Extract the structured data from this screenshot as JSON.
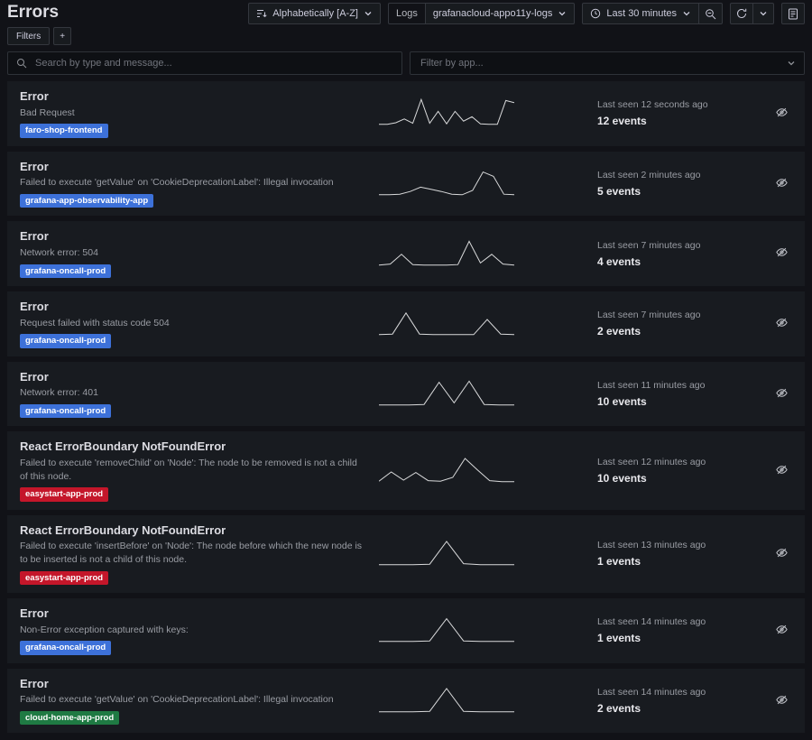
{
  "page": {
    "title": "Errors"
  },
  "toolbar": {
    "sort_label": "Alphabetically [A-Z]",
    "logs_label": "Logs",
    "logs_value": "grafanacloud-appo11y-logs",
    "time_range_label": "Last 30 minutes"
  },
  "filters_bar": {
    "filters_label": "Filters",
    "add_label": "+"
  },
  "search": {
    "placeholder": "Search by type and message..."
  },
  "app_filter": {
    "placeholder": "Filter by app..."
  },
  "colors": {
    "badge_blue": "#3d71d9",
    "badge_red": "#c4162a",
    "badge_green": "#1f7a43",
    "spark_line": "#d8d9da"
  },
  "errors": [
    {
      "title": "Error",
      "message": "Bad Request",
      "app": "faro-shop-frontend",
      "badge": "blue",
      "last_seen": "Last seen 12 seconds ago",
      "events": "12 events",
      "spark": [
        0.2,
        0.2,
        0.5,
        1.2,
        0.4,
        4.8,
        0.4,
        2.6,
        0.3,
        2.6,
        0.8,
        1.6,
        0.3,
        0.2,
        0.2,
        4.6,
        4.2
      ]
    },
    {
      "title": "Error",
      "message": "Failed to execute 'getValue' on 'CookieDeprecationLabel': Illegal invocation",
      "app": "grafana-app-observability-app",
      "badge": "blue",
      "last_seen": "Last seen 2 minutes ago",
      "events": "5 events",
      "spark": [
        0.2,
        0.2,
        0.3,
        0.8,
        1.6,
        1.2,
        0.8,
        0.3,
        0.2,
        1.0,
        4.4,
        3.6,
        0.3,
        0.2
      ]
    },
    {
      "title": "Error",
      "message": "Network error: 504",
      "app": "grafana-oncall-prod",
      "badge": "blue",
      "last_seen": "Last seen 7 minutes ago",
      "events": "4 events",
      "spark": [
        0.2,
        0.4,
        2.2,
        0.3,
        0.2,
        0.2,
        0.2,
        0.3,
        4.6,
        0.6,
        2.2,
        0.4,
        0.2
      ]
    },
    {
      "title": "Error",
      "message": "Request failed with status code 504",
      "app": "grafana-oncall-prod",
      "badge": "blue",
      "last_seen": "Last seen 7 minutes ago",
      "events": "2 events",
      "spark": [
        0.2,
        0.3,
        4.2,
        0.3,
        0.2,
        0.2,
        0.2,
        0.2,
        3.0,
        0.3,
        0.2
      ]
    },
    {
      "title": "Error",
      "message": "Network error: 401",
      "app": "grafana-oncall-prod",
      "badge": "blue",
      "last_seen": "Last seen 11 minutes ago",
      "events": "10 events",
      "spark": [
        0.2,
        0.2,
        0.2,
        0.3,
        4.4,
        0.6,
        4.6,
        0.3,
        0.2,
        0.2
      ]
    },
    {
      "title": "React ErrorBoundary NotFoundError",
      "message": "Failed to execute 'removeChild' on 'Node': The node to be removed is not a child of this node.",
      "app": "easystart-app-prod",
      "badge": "red",
      "last_seen": "Last seen 12 minutes ago",
      "events": "10 events",
      "spark": [
        0.3,
        2.0,
        0.5,
        1.9,
        0.4,
        0.3,
        1.0,
        4.5,
        2.4,
        0.4,
        0.2,
        0.2
      ]
    },
    {
      "title": "React ErrorBoundary NotFoundError",
      "message": "Failed to execute 'insertBefore' on 'Node': The node before which the new node is to be inserted is not a child of this node.",
      "app": "easystart-app-prod",
      "badge": "red",
      "last_seen": "Last seen 13 minutes ago",
      "events": "1 events",
      "spark": [
        0.2,
        0.2,
        0.2,
        0.3,
        4.5,
        0.4,
        0.2,
        0.2,
        0.2
      ]
    },
    {
      "title": "Error",
      "message": "Non-Error exception captured with keys:",
      "app": "grafana-oncall-prod",
      "badge": "blue",
      "last_seen": "Last seen 14 minutes ago",
      "events": "1 events",
      "spark": [
        0.2,
        0.2,
        0.2,
        0.3,
        4.4,
        0.3,
        0.2,
        0.2,
        0.2
      ]
    },
    {
      "title": "Error",
      "message": "Failed to execute 'getValue' on 'CookieDeprecationLabel': Illegal invocation",
      "app": "cloud-home-app-prod",
      "badge": "green",
      "last_seen": "Last seen 14 minutes ago",
      "events": "2 events",
      "spark": [
        0.2,
        0.2,
        0.2,
        0.3,
        4.5,
        0.3,
        0.2,
        0.2,
        0.2
      ]
    }
  ]
}
